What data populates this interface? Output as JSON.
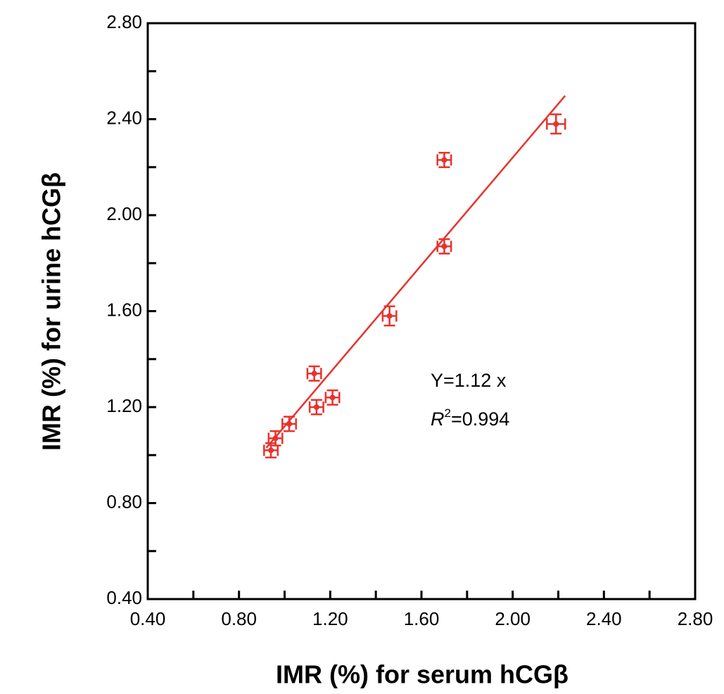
{
  "chart_data": {
    "type": "scatter",
    "xlabel": "IMR (%) for serum hCGβ",
    "ylabel": "IMR (%) for urine hCGβ",
    "x": [
      0.94,
      0.96,
      1.02,
      1.13,
      1.14,
      1.21,
      1.46,
      1.7,
      1.7,
      2.19
    ],
    "values": [
      1.02,
      1.07,
      1.13,
      1.34,
      1.2,
      1.24,
      1.58,
      1.87,
      2.23,
      2.38
    ],
    "xerr": [
      0.03,
      0.03,
      0.03,
      0.03,
      0.03,
      0.03,
      0.03,
      0.03,
      0.03,
      0.04
    ],
    "yerr": [
      0.03,
      0.03,
      0.03,
      0.03,
      0.03,
      0.03,
      0.04,
      0.03,
      0.03,
      0.04
    ],
    "color": "#e8322d",
    "fit": {
      "slope": 1.12,
      "x_range": [
        0.92,
        2.23
      ]
    },
    "annotations": {
      "equation": "Y=1.12 x",
      "r2_symbol": "R",
      "r2_power": "2",
      "r2_value": "=0.994"
    },
    "xlim": [
      0.4,
      2.8
    ],
    "ylim": [
      0.4,
      2.8
    ],
    "xticks": [
      {
        "value": 0.4,
        "label": "0.40"
      },
      {
        "value": 0.8,
        "label": "0.80"
      },
      {
        "value": 1.2,
        "label": "1.20"
      },
      {
        "value": 1.6,
        "label": "1.60"
      },
      {
        "value": 2.0,
        "label": "2.00"
      },
      {
        "value": 2.4,
        "label": "2.40"
      },
      {
        "value": 2.8,
        "label": "2.80"
      }
    ],
    "yticks": [
      {
        "value": 0.4,
        "label": "0.40"
      },
      {
        "value": 0.8,
        "label": "0.80"
      },
      {
        "value": 1.2,
        "label": "1.20"
      },
      {
        "value": 1.6,
        "label": "1.60"
      },
      {
        "value": 2.0,
        "label": "2.00"
      },
      {
        "value": 2.4,
        "label": "2.40"
      },
      {
        "value": 2.8,
        "label": "2.80"
      }
    ],
    "minor_ticks": [
      0.6,
      1.0,
      1.4,
      1.8,
      2.2,
      2.6
    ]
  }
}
